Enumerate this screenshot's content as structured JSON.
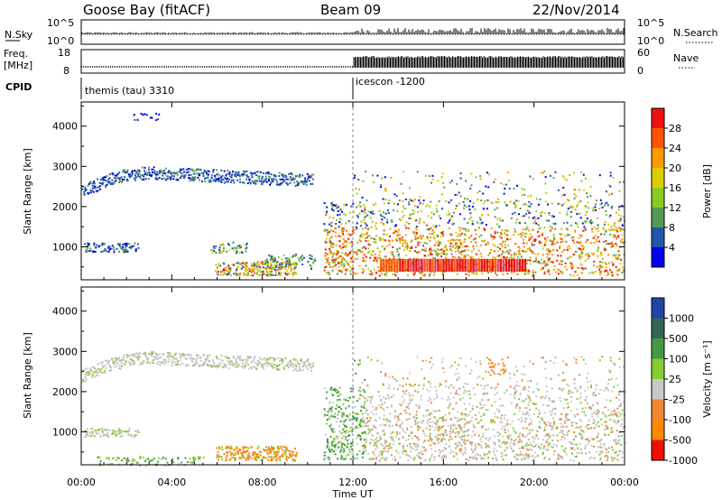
{
  "header": {
    "radar": "Goose Bay (fitACF)",
    "beam": "Beam 09",
    "date": "22/Nov/2014"
  },
  "sky_panel": {
    "left_label": "N.Sky",
    "right_label": "N.Search",
    "left_ticks": [
      "10^5",
      "10^0"
    ],
    "right_ticks": [
      "10^5",
      "10^0"
    ]
  },
  "freq_panel": {
    "left_label_top": "Freq.",
    "left_label_bottom": "[MHz]",
    "right_label": "Nave",
    "left_ticks": [
      "18",
      "8"
    ],
    "right_ticks": [
      "60",
      "0"
    ]
  },
  "cpid": {
    "label": "CPID",
    "mode1": "themis (tau) 3310",
    "mode2": "icescon -1200",
    "switch_hour": 12.0
  },
  "power_panel": {
    "ylabel": "Slant Range [km]",
    "colorbar_label": "Power [dB]",
    "colorbar_ticks": [
      "28",
      "24",
      "20",
      "16",
      "12",
      "8",
      "4"
    ],
    "colors": [
      "#ee1111",
      "#ff5500",
      "#ff9900",
      "#ddcc00",
      "#88cc22",
      "#559955",
      "#2255aa",
      "#0000ee"
    ]
  },
  "velocity_panel": {
    "ylabel": "Slant Range [km]",
    "colorbar_label": "Velocity [m s⁻¹]",
    "colorbar_ticks": [
      "1000",
      "500",
      "100",
      "25",
      "-25",
      "-100",
      "-500",
      "-1000"
    ],
    "colors": [
      "#2244aa",
      "#336655",
      "#449944",
      "#88cc33",
      "#c8c8c8",
      "#ee8833",
      "#ff8800",
      "#ee1100"
    ]
  },
  "chart_data": {
    "type": "heatmap",
    "title": "Goose Bay (fitACF)   Beam 09   22/Nov/2014",
    "xlabel": "Time UT",
    "x_ticks": [
      "00:00",
      "04:00",
      "08:00",
      "12:00",
      "16:00",
      "20:00",
      "00:00"
    ],
    "xlim_hours": [
      0,
      24
    ],
    "ylim_km": [
      180,
      4600
    ],
    "y_ticks": [
      1000,
      2000,
      3000,
      4000
    ],
    "panels": [
      "Power [dB]",
      "Velocity [m s⁻¹]"
    ],
    "echo_regions": [
      {
        "t0": 0.0,
        "t1": 10.2,
        "r0": 2000,
        "r1": 3000,
        "note": "arc"
      },
      {
        "t0": 0.2,
        "t1": 2.5,
        "r0": 900,
        "r1": 1100
      },
      {
        "t0": 6.0,
        "t1": 9.5,
        "r0": 280,
        "r1": 700
      },
      {
        "t0": 10.5,
        "t1": 24.0,
        "r0": 250,
        "r1": 2800
      },
      {
        "t0": 13.0,
        "t1": 19.5,
        "r0": 380,
        "r1": 700,
        "note": "strong power band"
      }
    ]
  }
}
